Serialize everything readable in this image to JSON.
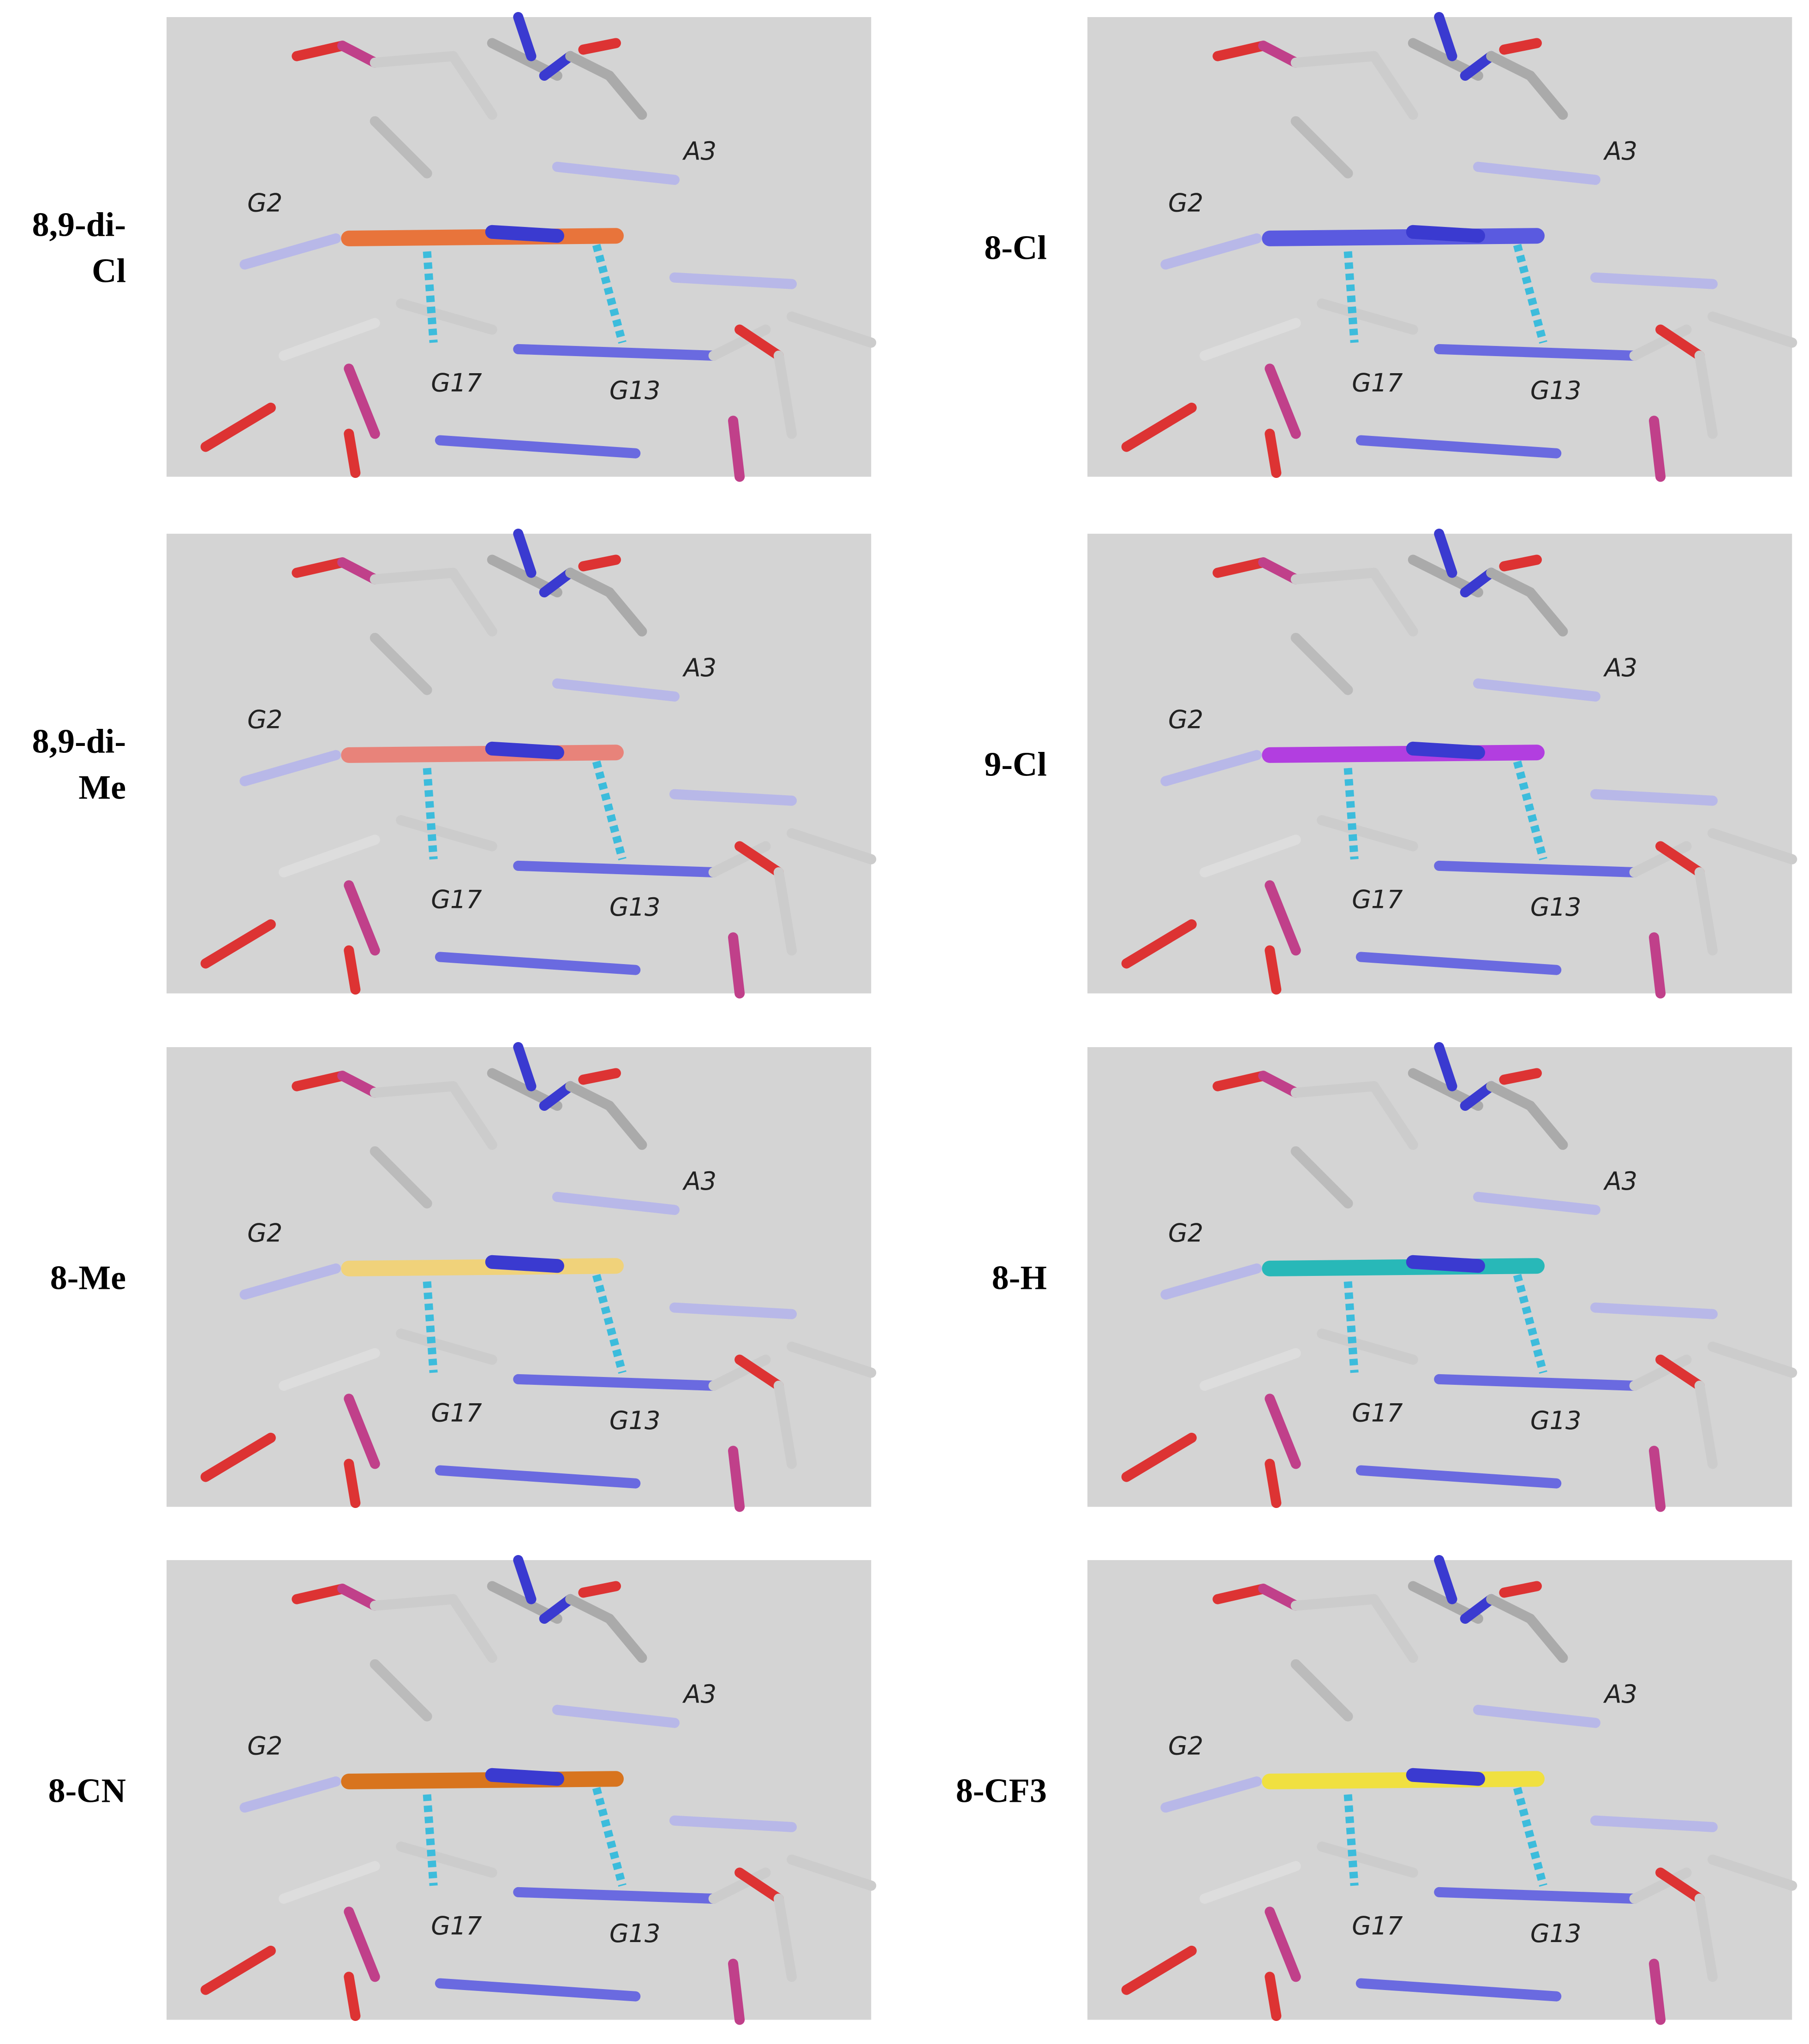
{
  "panels": [
    {
      "label": [
        "8,9-di-",
        "Cl"
      ],
      "ligand_color": "#e8743b",
      "residues": [
        "G2",
        "A3",
        "G17",
        "G13"
      ]
    },
    {
      "label": [
        "8-Cl"
      ],
      "ligand_color": "#5a5ae0",
      "residues": [
        "G2",
        "A3",
        "G17",
        "G13"
      ]
    },
    {
      "label": [
        "8,9-di-",
        "Me"
      ],
      "ligand_color": "#e8837a",
      "residues": [
        "G2",
        "A3",
        "G17",
        "G13"
      ]
    },
    {
      "label": [
        "9-Cl"
      ],
      "ligand_color": "#b23ee0",
      "residues": [
        "G2",
        "A3",
        "G17",
        "G13"
      ]
    },
    {
      "label": [
        "8-Me"
      ],
      "ligand_color": "#f0d27a",
      "residues": [
        "G2",
        "A3",
        "G17",
        "G13"
      ]
    },
    {
      "label": [
        "8-H"
      ],
      "ligand_color": "#28b8b8",
      "residues": [
        "G2",
        "A3",
        "G17",
        "G13"
      ]
    },
    {
      "label": [
        "8-CN"
      ],
      "ligand_color": "#d8741e",
      "residues": [
        "G2",
        "A3",
        "G17",
        "G13"
      ]
    },
    {
      "label": [
        "8-CF3"
      ],
      "ligand_color": "#f0e040",
      "residues": [
        "G2",
        "A3",
        "G17",
        "G13"
      ]
    }
  ]
}
